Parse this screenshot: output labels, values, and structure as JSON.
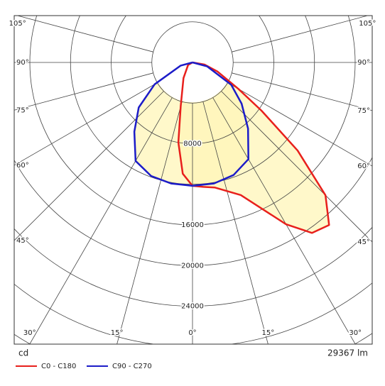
{
  "chart_data": {
    "type": "polar",
    "radial_unit": "cd",
    "flux": "29367 lm",
    "rlim": [
      0,
      32000
    ],
    "rticks": [
      4000,
      8000,
      12000,
      16000,
      20000,
      24000,
      28000,
      32000
    ],
    "rlabels": [
      8000,
      16000,
      20000,
      24000
    ],
    "angle_ticks": [
      {
        "value": 0,
        "label": "0°"
      },
      {
        "value": 15,
        "label": "15°"
      },
      {
        "value": 30,
        "label": "30°"
      },
      {
        "value": 45,
        "label": "45°"
      },
      {
        "value": 60,
        "label": "60°"
      },
      {
        "value": 75,
        "label": "75°"
      },
      {
        "value": 90,
        "label": "90°"
      },
      {
        "value": 105,
        "label": "105°"
      }
    ],
    "series": [
      {
        "name": "C0 - C180",
        "color": "#e8201c",
        "angles": [
          -90,
          -60,
          -30,
          -15,
          -10,
          -5,
          0,
          5,
          10,
          20,
          30,
          35,
          40,
          45,
          50,
          55,
          60,
          70,
          80,
          90
        ],
        "values": [
          0,
          500,
          1780,
          4470,
          8000,
          11000,
          12150,
          12300,
          12500,
          13900,
          18400,
          20500,
          20900,
          18500,
          13500,
          8300,
          5200,
          2600,
          1200,
          0
        ]
      },
      {
        "name": "C90 - C270",
        "color": "#1c1cc8",
        "angles": [
          -90,
          -75,
          -60,
          -50,
          -40,
          -30,
          -20,
          -10,
          0,
          10,
          20,
          30,
          40,
          50,
          60,
          75,
          90
        ],
        "values": [
          0,
          1200,
          4300,
          6900,
          8900,
          11200,
          11900,
          12100,
          12150,
          12100,
          11800,
          11000,
          8500,
          6300,
          4400,
          1500,
          0
        ]
      }
    ]
  }
}
